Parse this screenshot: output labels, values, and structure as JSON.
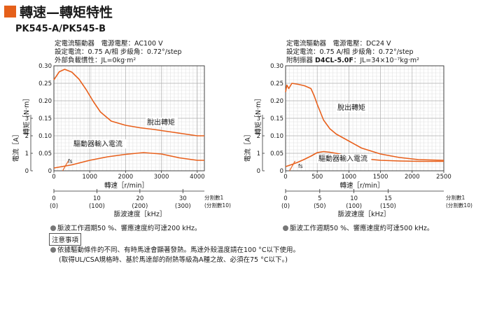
{
  "page": {
    "title": "轉速—轉矩特性",
    "model": "PK545-A/PK545-B"
  },
  "conditions": {
    "left": {
      "line1": "定電流驅動器　電源電壓：AC100 V",
      "line2": "設定電流：0.75 A/相 步級角：0.72°/step",
      "line3_text": "外部負載慣性：JL=0kg·m²",
      "line3_bold": ""
    },
    "right": {
      "line1": "定電流驅動器　電源電壓：DC24 V",
      "line2": "設定電流：0.75 A/相 步級角：0.72°/step",
      "line3_label": "附制振器 ",
      "line3_bold": "D4CL-5.0F",
      "line3_text": "：JL=34×10⁻⁷kg·m²"
    }
  },
  "bullets": {
    "left": "脈波工作週期50 %、響應速度約可達200 kHz。",
    "right": "脈波工作週期50 %、響應速度約可達500 kHz。"
  },
  "notes": {
    "heading": "注意事項",
    "line1": "依據驅動條件的不同、有時馬達會顯著發熱。馬達外殼溫度請在100 °C以下使用。",
    "line2": "(取得UL/CSA規格時、基於馬達部的耐熱等級為A種之故、必須在75 °C以下。)"
  },
  "colors": {
    "curve": "#e8601c",
    "grid": "#b0b0b0",
    "frame": "#333333",
    "label_bg": "#ffffff"
  },
  "chart_data": [
    {
      "type": "line",
      "title": "",
      "xlabel": "轉速［r/min］",
      "ylabel_torque": "轉矩［N·m］",
      "ylabel_current": "電流［A］",
      "x_ticks": [
        0,
        1000,
        2000,
        3000,
        4000
      ],
      "xlim": [
        0,
        4200
      ],
      "y_ticks": [
        "0",
        "0.05",
        "0.10",
        "0.15",
        "0.20",
        "0.25",
        "0.30"
      ],
      "ylim": [
        0,
        0.3
      ],
      "current_ticks": [
        "0",
        "1",
        "2",
        "3"
      ],
      "current_lim": [
        0,
        3
      ],
      "pulse_axis": {
        "label": "脈波速度［kHz］",
        "ticks": [
          "0",
          "10",
          "20",
          "30"
        ],
        "sub_ticks": [
          "(0)",
          "(100)",
          "(200)",
          "(300)"
        ],
        "div1": "分割數1",
        "div10": "(分割數10)"
      },
      "series": [
        {
          "name": "脫出轉矩",
          "x": [
            0,
            150,
            300,
            500,
            700,
            900,
            1100,
            1300,
            1600,
            2000,
            2400,
            2800,
            3200,
            3600,
            4000,
            4200
          ],
          "y": [
            0.26,
            0.283,
            0.29,
            0.282,
            0.262,
            0.232,
            0.198,
            0.168,
            0.142,
            0.13,
            0.123,
            0.118,
            0.112,
            0.106,
            0.1,
            0.1
          ]
        },
        {
          "name": "驅動器輸入電流",
          "x": [
            0,
            500,
            1000,
            1500,
            2000,
            2500,
            3000,
            3500,
            4000,
            4200
          ],
          "y": [
            0.008,
            0.017,
            0.03,
            0.04,
            0.047,
            0.052,
            0.048,
            0.037,
            0.03,
            0.03
          ]
        }
      ],
      "fs": {
        "label": "fs",
        "x": 400
      }
    },
    {
      "type": "line",
      "title": "",
      "xlabel": "轉速［r/min］",
      "ylabel_torque": "轉矩［N·m］",
      "ylabel_current": "電流［A］",
      "x_ticks": [
        0,
        500,
        1000,
        1500,
        2000,
        2500
      ],
      "xlim": [
        0,
        2500
      ],
      "y_ticks": [
        "0",
        "0.05",
        "0.10",
        "0.15",
        "0.20",
        "0.25",
        "0.30"
      ],
      "ylim": [
        0,
        0.3
      ],
      "current_ticks": [
        "0",
        "1",
        "2",
        "3"
      ],
      "current_lim": [
        0,
        3
      ],
      "pulse_axis": {
        "label": "脈波速度［kHz］",
        "ticks": [
          "0",
          "5",
          "10",
          "15"
        ],
        "sub_ticks": [
          "(0)",
          "(50)",
          "(100)",
          "(150)"
        ],
        "div1": "分割數1",
        "div10": "(分割數10)"
      },
      "series": [
        {
          "name": "脫出轉矩",
          "x": [
            0,
            20,
            50,
            100,
            200,
            300,
            400,
            450,
            500,
            600,
            700,
            800,
            1000,
            1200,
            1500,
            1800,
            2100,
            2500
          ],
          "y": [
            0.225,
            0.245,
            0.235,
            0.25,
            0.247,
            0.243,
            0.235,
            0.215,
            0.19,
            0.145,
            0.12,
            0.105,
            0.085,
            0.065,
            0.048,
            0.038,
            0.032,
            0.03
          ]
        },
        {
          "name": "驅動器輸入電流",
          "x": [
            0,
            100,
            200,
            300,
            400,
            500,
            600,
            700,
            800,
            1000,
            1200,
            1500,
            1800,
            2100,
            2500
          ],
          "y": [
            0.012,
            0.018,
            0.025,
            0.033,
            0.042,
            0.052,
            0.055,
            0.053,
            0.05,
            0.042,
            0.035,
            0.03,
            0.028,
            0.027,
            0.027
          ]
        }
      ],
      "fs": {
        "label": "fs",
        "x": 150
      }
    }
  ]
}
